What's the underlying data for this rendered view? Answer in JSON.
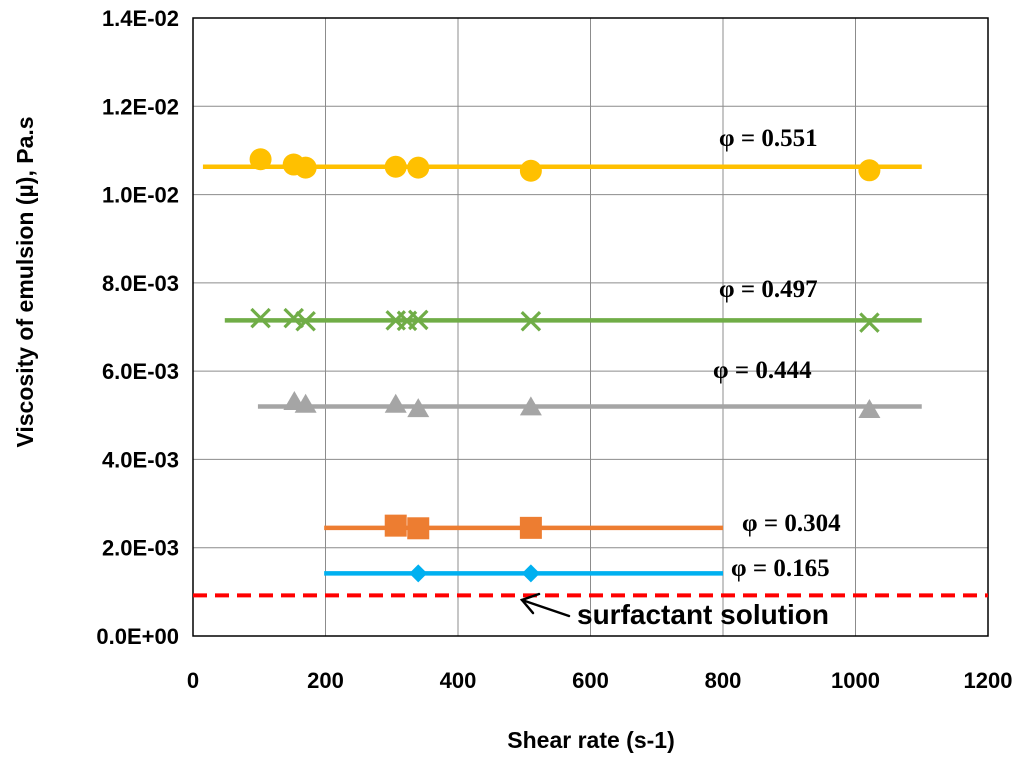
{
  "chart_data": {
    "type": "scatter",
    "title": "",
    "xlabel": "Shear rate (s-1)",
    "ylabel": "Viscosity of emulsion (µ), Pa.s",
    "xlim": [
      0,
      1200
    ],
    "ylim": [
      0,
      0.014
    ],
    "x_ticks": [
      "0",
      "200",
      "400",
      "600",
      "800",
      "1000",
      "1200"
    ],
    "y_ticks": [
      "0.0E+00",
      "2.0E-03",
      "4.0E-03",
      "6.0E-03",
      "8.0E-03",
      "1.0E-02",
      "1.2E-02",
      "1.4E-02"
    ],
    "grid": true,
    "series": [
      {
        "name": "φ = 0.551",
        "color": "#FFC000",
        "marker": "circle",
        "x": [
          102,
          152,
          170,
          306,
          340,
          510,
          1021
        ],
        "y": [
          0.0108,
          0.01068,
          0.01061,
          0.01063,
          0.01061,
          0.01054,
          0.01055
        ],
        "trend": {
          "x_start": 15,
          "x_end": 1100,
          "y": 0.01063
        }
      },
      {
        "name": "φ = 0.497",
        "color": "#70AD47",
        "marker": "x",
        "x": [
          102,
          152,
          170,
          306,
          323,
          340,
          510,
          1021
        ],
        "y": [
          0.0072,
          0.0072,
          0.00713,
          0.00715,
          0.00714,
          0.00716,
          0.00713,
          0.0071
        ],
        "trend": {
          "x_start": 48,
          "x_end": 1100,
          "y": 0.00715
        }
      },
      {
        "name": "φ = 0.444",
        "color": "#A5A5A5",
        "marker": "triangle",
        "x": [
          153,
          170,
          306,
          340,
          510,
          1021
        ],
        "y": [
          0.0053,
          0.00524,
          0.00524,
          0.00514,
          0.00518,
          0.00512
        ],
        "trend": {
          "x_start": 98,
          "x_end": 1100,
          "y": 0.0052
        }
      },
      {
        "name": "φ = 0.304",
        "color": "#ED7D31",
        "marker": "square",
        "x": [
          306,
          340,
          510
        ],
        "y": [
          0.0025,
          0.00244,
          0.00245
        ],
        "trend": {
          "x_start": 198,
          "x_end": 800,
          "y": 0.00245
        }
      },
      {
        "name": "φ = 0.165",
        "color": "#00B0F0",
        "marker": "diamond",
        "x": [
          340,
          510
        ],
        "y": [
          0.00142,
          0.00142
        ],
        "trend": {
          "x_start": 198,
          "x_end": 800,
          "y": 0.00142
        }
      }
    ],
    "reference_line": {
      "name": "surfactant solution",
      "color": "#FF0000",
      "style": "dashed",
      "y": 0.00092
    },
    "annotations": [
      {
        "text": "φ = 0.551",
        "series": 0
      },
      {
        "text": "φ = 0.497",
        "series": 1
      },
      {
        "text": "φ = 0.444",
        "series": 2
      },
      {
        "text": "φ = 0.304",
        "series": 3
      },
      {
        "text": "φ = 0.165",
        "series": 4
      },
      {
        "text": "surfactant solution",
        "series": "reference"
      }
    ]
  }
}
